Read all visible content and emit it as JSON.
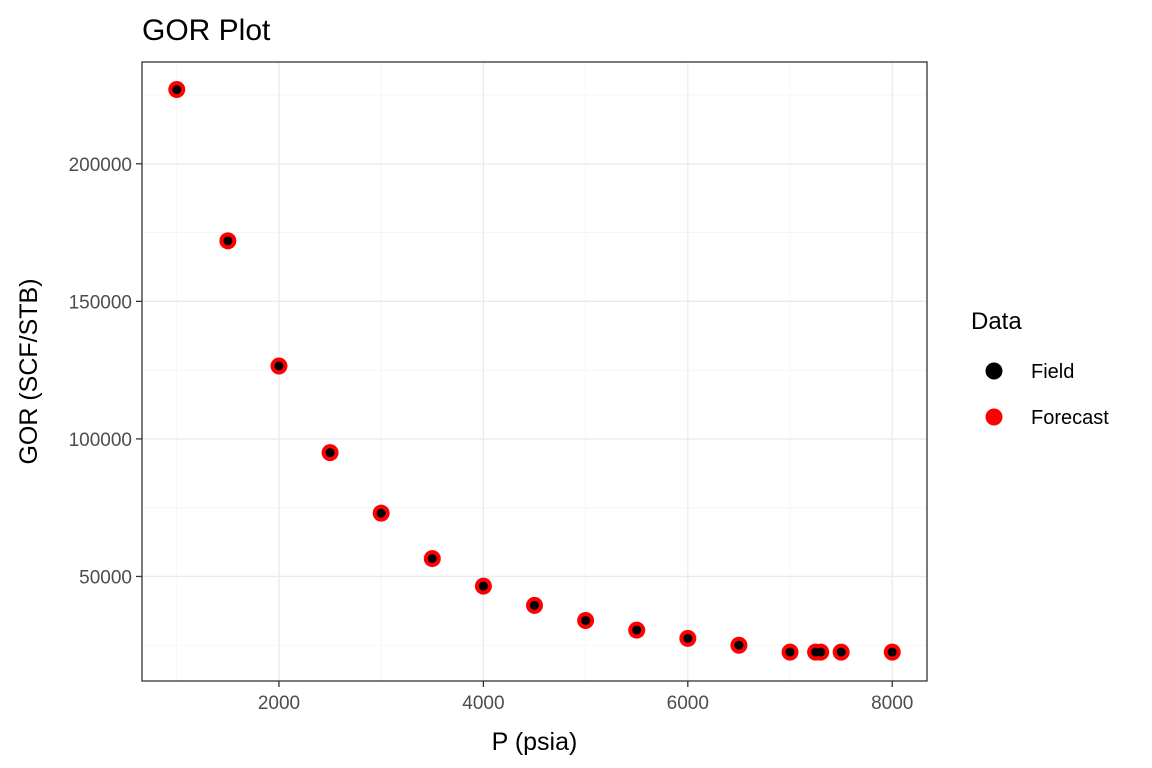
{
  "chart_data": {
    "type": "scatter",
    "title": "GOR Plot",
    "xlabel": "P (psia)",
    "ylabel": "GOR (SCF/STB)",
    "xlim": [
      660,
      8340
    ],
    "ylim": [
      12000,
      237000
    ],
    "x_ticks": [
      2000,
      4000,
      6000,
      8000
    ],
    "y_ticks": [
      50000,
      100000,
      150000,
      200000
    ],
    "x_tick_labels": [
      "2000",
      "4000",
      "6000",
      "8000"
    ],
    "y_tick_labels": [
      "50000",
      "100000",
      "150000",
      "200000"
    ],
    "grid": true,
    "legend": {
      "title": "Data",
      "position": "right",
      "entries": [
        {
          "label": "Field",
          "color": "#000000"
        },
        {
          "label": "Forecast",
          "color": "#ff0000"
        }
      ]
    },
    "series": [
      {
        "name": "Forecast",
        "color": "#ff0000",
        "x": [
          1000,
          1500,
          2000,
          2500,
          3000,
          3500,
          4000,
          4500,
          5000,
          5500,
          6000,
          6500,
          7000,
          7250,
          7300,
          7500,
          8000
        ],
        "y": [
          227000,
          172000,
          126500,
          95000,
          73000,
          56500,
          46500,
          39500,
          34000,
          30500,
          27500,
          25000,
          22500,
          22500,
          22500,
          22500,
          22500
        ]
      },
      {
        "name": "Field",
        "color": "#000000",
        "x": [
          1000,
          1500,
          2000,
          2500,
          3000,
          3500,
          4000,
          4500,
          5000,
          5500,
          6000,
          6500,
          7000,
          7250,
          7300,
          7500,
          8000
        ],
        "y": [
          227000,
          172000,
          126500,
          95000,
          73000,
          56500,
          46500,
          39500,
          34000,
          30500,
          27500,
          25000,
          22500,
          22500,
          22500,
          22500,
          22500
        ]
      }
    ]
  }
}
